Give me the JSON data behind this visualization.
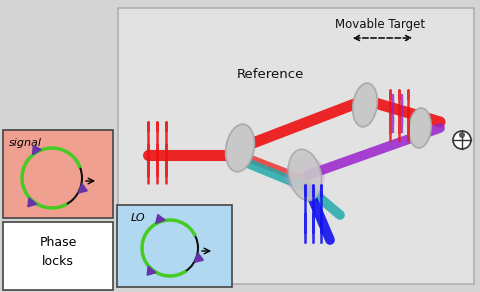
{
  "bg_color": "#d4d4d4",
  "panel_bg": "#e2e2e2",
  "panel_bg_signal": "#f0a090",
  "panel_bg_lo": "#b0d8f0",
  "panel_border": "#444444",
  "text_color": "#111111",
  "label_signal": "signal",
  "label_phase": "Phase\nlocks",
  "label_lo": "LO",
  "label_reference": "Reference",
  "label_movable": "Movable Target",
  "red_beam": "#ee1111",
  "blue_beam": "#1111ee",
  "purple_beam": "#9922cc",
  "teal_beam": "#22aaaa",
  "green_arc": "#44cc22",
  "coupler_color": "#6633aa",
  "disk_color": "#c8c8c8",
  "disk_edge": "#aaaaaa"
}
